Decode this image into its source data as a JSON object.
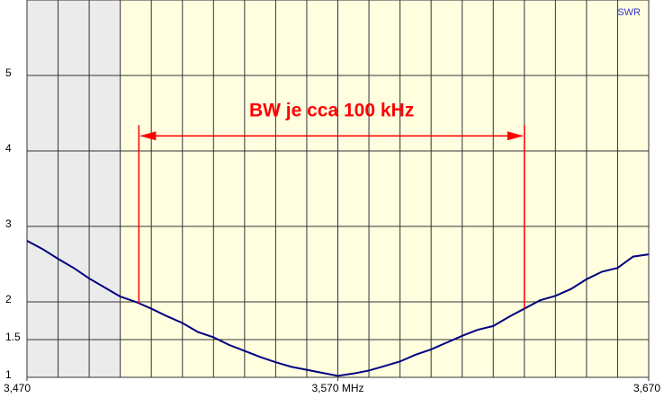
{
  "chart_data": {
    "type": "line",
    "ylabel": "SWR",
    "x": [
      3.47,
      3.475,
      3.48,
      3.485,
      3.49,
      3.495,
      3.5,
      3.505,
      3.51,
      3.515,
      3.52,
      3.525,
      3.53,
      3.535,
      3.54,
      3.545,
      3.55,
      3.555,
      3.56,
      3.565,
      3.57,
      3.575,
      3.58,
      3.585,
      3.59,
      3.595,
      3.6,
      3.605,
      3.61,
      3.615,
      3.62,
      3.625,
      3.63,
      3.635,
      3.64,
      3.645,
      3.65,
      3.655,
      3.66,
      3.665,
      3.67
    ],
    "series": [
      {
        "name": "SWR",
        "color": "#000080",
        "values": [
          2.81,
          2.7,
          2.57,
          2.45,
          2.31,
          2.19,
          2.07,
          2.0,
          1.91,
          1.81,
          1.72,
          1.6,
          1.53,
          1.43,
          1.35,
          1.27,
          1.2,
          1.14,
          1.1,
          1.06,
          1.02,
          1.05,
          1.09,
          1.15,
          1.21,
          1.3,
          1.37,
          1.46,
          1.55,
          1.63,
          1.68,
          1.8,
          1.91,
          2.02,
          2.08,
          2.17,
          2.3,
          2.4,
          2.45,
          2.6,
          2.63
        ]
      }
    ],
    "xlim": [
      3.47,
      3.67
    ],
    "xticks": [
      {
        "value": 3.47,
        "label": "3,470"
      },
      {
        "value": 3.57,
        "label": "3,570 MHz"
      },
      {
        "value": 3.67,
        "label": "3,670"
      }
    ],
    "ylim": [
      1,
      6
    ],
    "yticks": [
      1,
      1.5,
      2,
      3,
      4,
      5
    ],
    "grid": true,
    "highlight": {
      "from": 3.5,
      "to": 3.67,
      "color": "#ffffe0",
      "outside_color": "#ebebeb"
    },
    "annotation": {
      "text": "BW je cca 100 kHz",
      "x_range": [
        3.506,
        3.63
      ],
      "y": 4.2,
      "color": "#ff0000"
    }
  }
}
